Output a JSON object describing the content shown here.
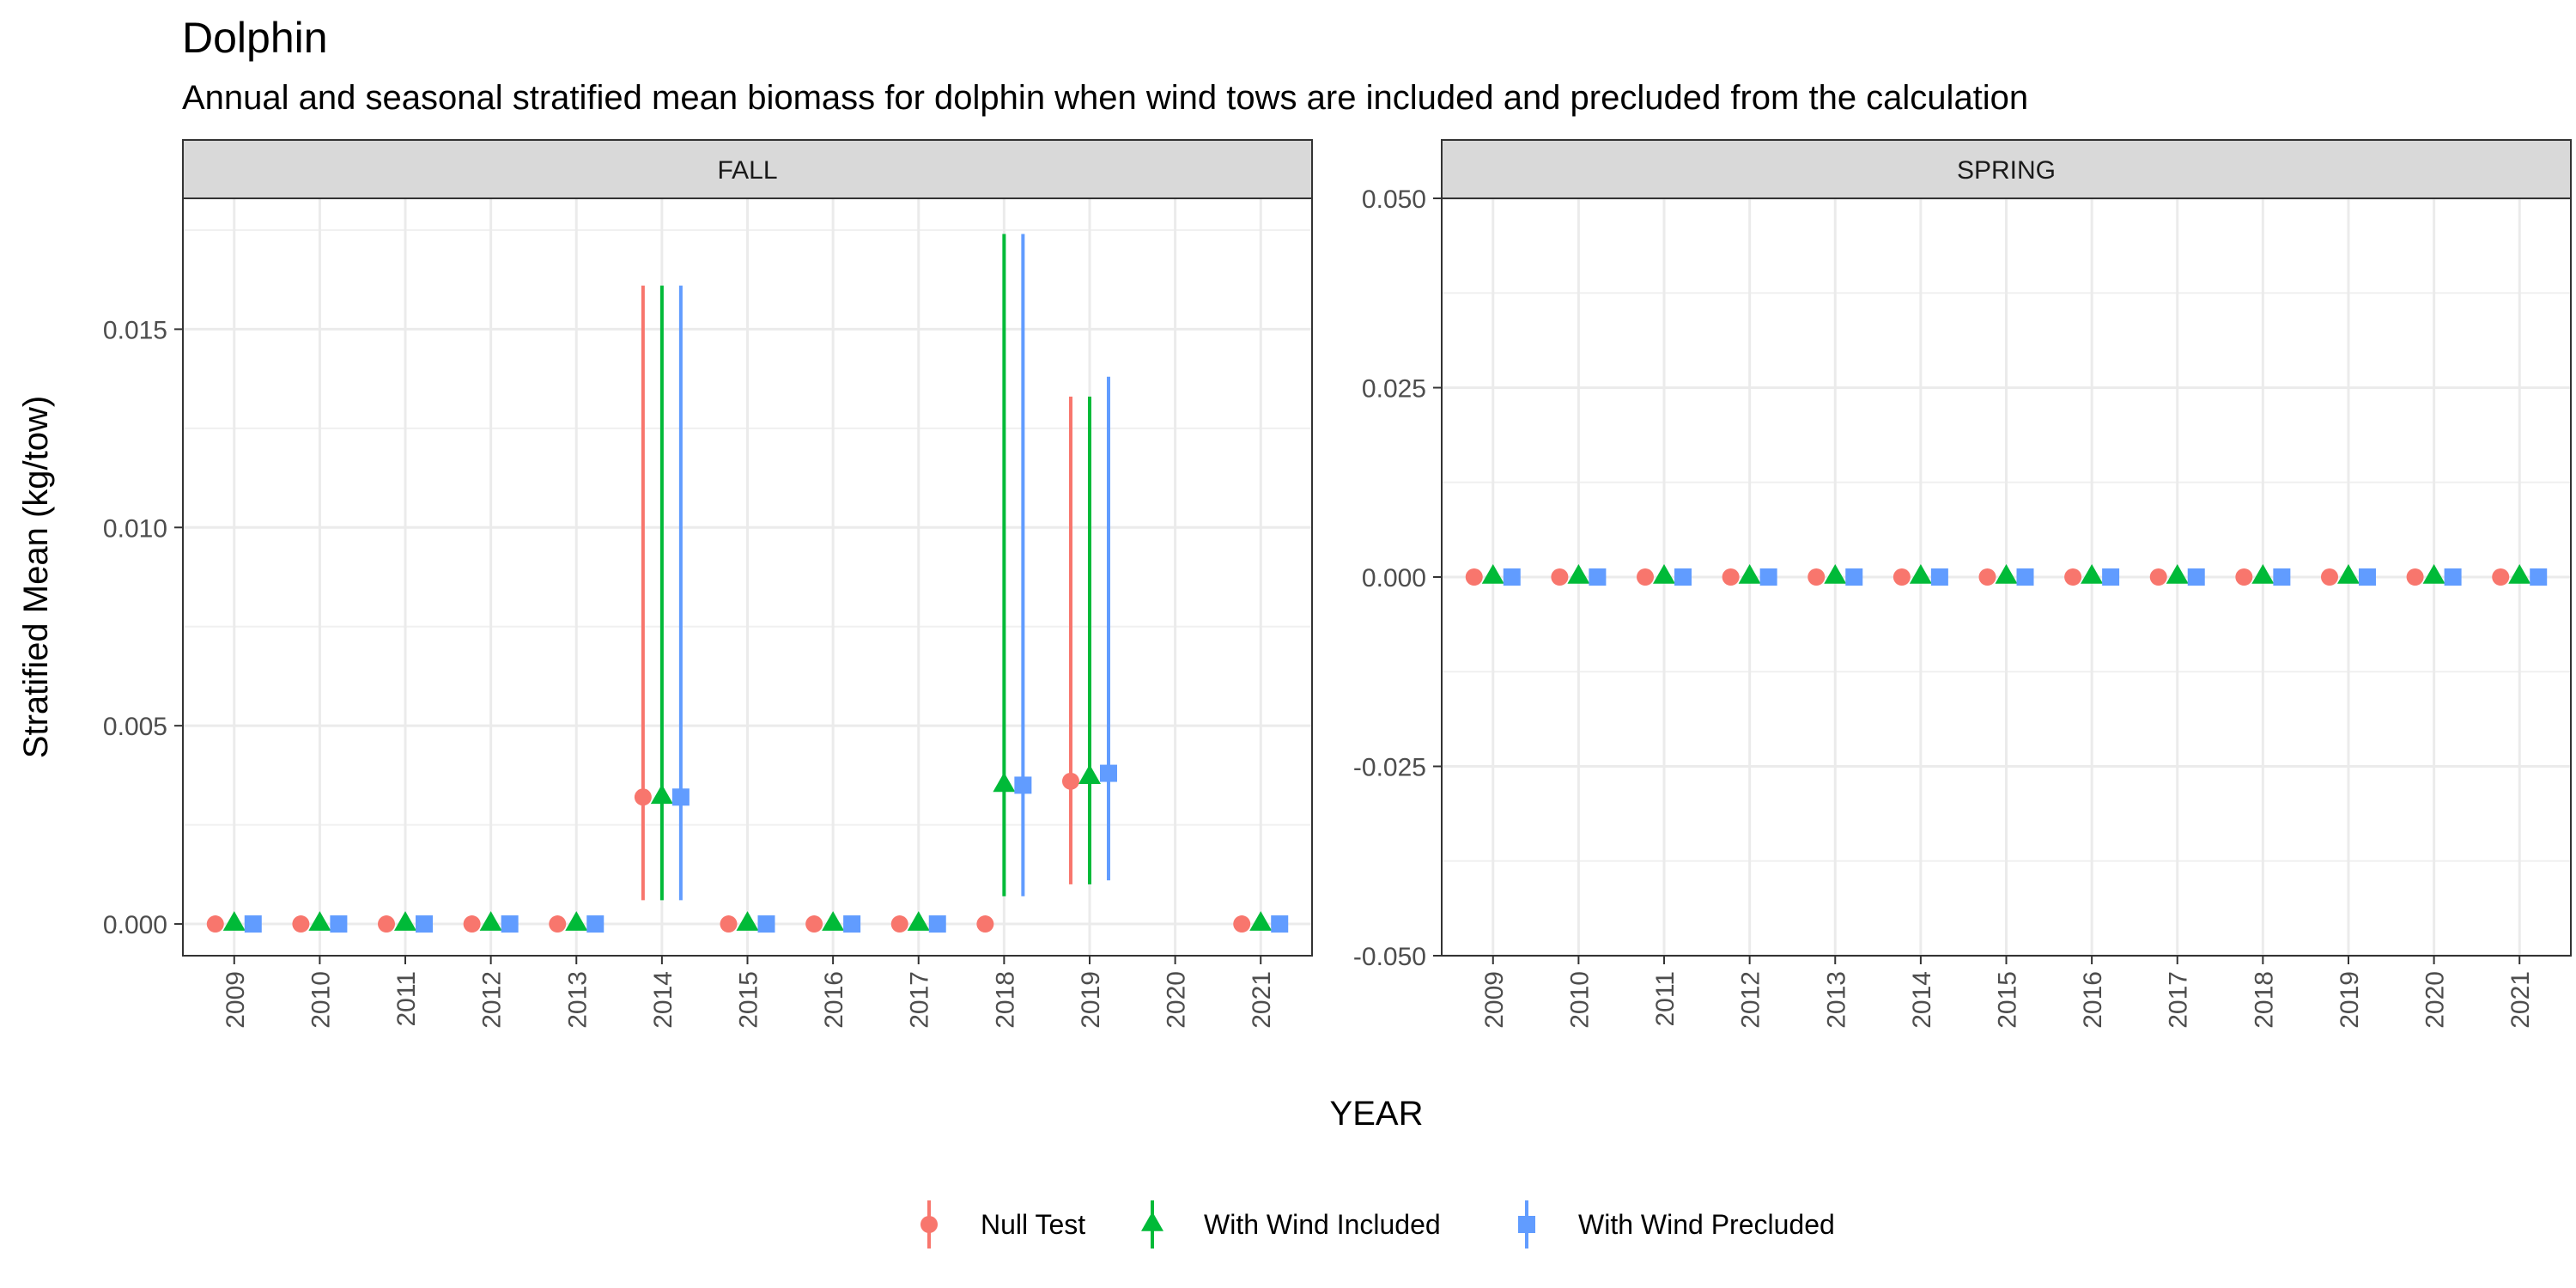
{
  "title": "Dolphin",
  "subtitle": "Annual and seasonal stratified mean biomass for dolphin when wind tows are included and precluded from the calculation",
  "chart_data": {
    "type": "scatter",
    "xlabel": "YEAR",
    "ylabel": "Stratified Mean (kg/tow)",
    "grid": true,
    "legend_position": "bottom",
    "categories": [
      "2009",
      "2010",
      "2011",
      "2012",
      "2013",
      "2014",
      "2015",
      "2016",
      "2017",
      "2018",
      "2019",
      "2020",
      "2021"
    ],
    "series": [
      {
        "name": "Null Test",
        "color": "#F8766D",
        "shape": "circle"
      },
      {
        "name": "With Wind Included",
        "color": "#00BA38",
        "shape": "triangle"
      },
      {
        "name": "With Wind Precluded",
        "color": "#619CFF",
        "shape": "square"
      }
    ],
    "panels": [
      {
        "strip": "FALL",
        "ylim": [
          -0.0008,
          0.0183
        ],
        "yticks": [
          0.0,
          0.005,
          0.01,
          0.015
        ],
        "ytick_labels": [
          "0.000",
          "0.005",
          "0.010",
          "0.015"
        ],
        "data": {
          "Null Test": [
            {
              "x": "2009",
              "y": 0,
              "lo": 0,
              "hi": 0
            },
            {
              "x": "2010",
              "y": 0,
              "lo": 0,
              "hi": 0
            },
            {
              "x": "2011",
              "y": 0,
              "lo": 0,
              "hi": 0
            },
            {
              "x": "2012",
              "y": 0,
              "lo": 0,
              "hi": 0
            },
            {
              "x": "2013",
              "y": 0,
              "lo": 0,
              "hi": 0
            },
            {
              "x": "2014",
              "y": 0.0032,
              "lo": 0.0006,
              "hi": 0.0161
            },
            {
              "x": "2015",
              "y": 0,
              "lo": 0,
              "hi": 0
            },
            {
              "x": "2016",
              "y": 0,
              "lo": 0,
              "hi": 0
            },
            {
              "x": "2017",
              "y": 0,
              "lo": 0,
              "hi": 0
            },
            {
              "x": "2018",
              "y": 0,
              "lo": 0,
              "hi": 0
            },
            {
              "x": "2019",
              "y": 0.0036,
              "lo": 0.001,
              "hi": 0.0133
            },
            {
              "x": "2021",
              "y": 0,
              "lo": 0,
              "hi": 0
            }
          ],
          "With Wind Included": [
            {
              "x": "2009",
              "y": 0,
              "lo": 0,
              "hi": 0
            },
            {
              "x": "2010",
              "y": 0,
              "lo": 0,
              "hi": 0
            },
            {
              "x": "2011",
              "y": 0,
              "lo": 0,
              "hi": 0
            },
            {
              "x": "2012",
              "y": 0,
              "lo": 0,
              "hi": 0
            },
            {
              "x": "2013",
              "y": 0,
              "lo": 0,
              "hi": 0
            },
            {
              "x": "2014",
              "y": 0.0032,
              "lo": 0.0006,
              "hi": 0.0161
            },
            {
              "x": "2015",
              "y": 0,
              "lo": 0,
              "hi": 0
            },
            {
              "x": "2016",
              "y": 0,
              "lo": 0,
              "hi": 0
            },
            {
              "x": "2017",
              "y": 0,
              "lo": 0,
              "hi": 0
            },
            {
              "x": "2018",
              "y": 0.0035,
              "lo": 0.0007,
              "hi": 0.0174
            },
            {
              "x": "2019",
              "y": 0.0037,
              "lo": 0.001,
              "hi": 0.0133
            },
            {
              "x": "2021",
              "y": 0,
              "lo": 0,
              "hi": 0
            }
          ],
          "With Wind Precluded": [
            {
              "x": "2009",
              "y": 0,
              "lo": 0,
              "hi": 0
            },
            {
              "x": "2010",
              "y": 0,
              "lo": 0,
              "hi": 0
            },
            {
              "x": "2011",
              "y": 0,
              "lo": 0,
              "hi": 0
            },
            {
              "x": "2012",
              "y": 0,
              "lo": 0,
              "hi": 0
            },
            {
              "x": "2013",
              "y": 0,
              "lo": 0,
              "hi": 0
            },
            {
              "x": "2014",
              "y": 0.0032,
              "lo": 0.0006,
              "hi": 0.0161
            },
            {
              "x": "2015",
              "y": 0,
              "lo": 0,
              "hi": 0
            },
            {
              "x": "2016",
              "y": 0,
              "lo": 0,
              "hi": 0
            },
            {
              "x": "2017",
              "y": 0,
              "lo": 0,
              "hi": 0
            },
            {
              "x": "2018",
              "y": 0.0035,
              "lo": 0.0007,
              "hi": 0.0174
            },
            {
              "x": "2019",
              "y": 0.0038,
              "lo": 0.0011,
              "hi": 0.0138
            },
            {
              "x": "2021",
              "y": 0,
              "lo": 0,
              "hi": 0
            }
          ]
        }
      },
      {
        "strip": "SPRING",
        "ylim": [
          -0.05,
          0.05
        ],
        "yticks": [
          -0.05,
          -0.025,
          0.0,
          0.025,
          0.05
        ],
        "ytick_labels": [
          "-0.050",
          "-0.025",
          "0.000",
          "0.025",
          "0.050"
        ],
        "data": {
          "Null Test": [
            {
              "x": "2009",
              "y": 0
            },
            {
              "x": "2010",
              "y": 0
            },
            {
              "x": "2011",
              "y": 0
            },
            {
              "x": "2012",
              "y": 0
            },
            {
              "x": "2013",
              "y": 0
            },
            {
              "x": "2014",
              "y": 0
            },
            {
              "x": "2015",
              "y": 0
            },
            {
              "x": "2016",
              "y": 0
            },
            {
              "x": "2017",
              "y": 0
            },
            {
              "x": "2018",
              "y": 0
            },
            {
              "x": "2019",
              "y": 0
            },
            {
              "x": "2020",
              "y": 0
            },
            {
              "x": "2021",
              "y": 0
            }
          ],
          "With Wind Included": [
            {
              "x": "2009",
              "y": 0
            },
            {
              "x": "2010",
              "y": 0
            },
            {
              "x": "2011",
              "y": 0
            },
            {
              "x": "2012",
              "y": 0
            },
            {
              "x": "2013",
              "y": 0
            },
            {
              "x": "2014",
              "y": 0
            },
            {
              "x": "2015",
              "y": 0
            },
            {
              "x": "2016",
              "y": 0
            },
            {
              "x": "2017",
              "y": 0
            },
            {
              "x": "2018",
              "y": 0
            },
            {
              "x": "2019",
              "y": 0
            },
            {
              "x": "2020",
              "y": 0
            },
            {
              "x": "2021",
              "y": 0
            }
          ],
          "With Wind Precluded": [
            {
              "x": "2009",
              "y": 0
            },
            {
              "x": "2010",
              "y": 0
            },
            {
              "x": "2011",
              "y": 0
            },
            {
              "x": "2012",
              "y": 0
            },
            {
              "x": "2013",
              "y": 0
            },
            {
              "x": "2014",
              "y": 0
            },
            {
              "x": "2015",
              "y": 0
            },
            {
              "x": "2016",
              "y": 0
            },
            {
              "x": "2017",
              "y": 0
            },
            {
              "x": "2018",
              "y": 0
            },
            {
              "x": "2019",
              "y": 0
            },
            {
              "x": "2020",
              "y": 0
            },
            {
              "x": "2021",
              "y": 0
            }
          ]
        }
      }
    ]
  }
}
